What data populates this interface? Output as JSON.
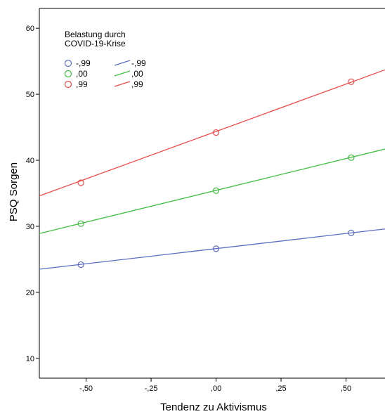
{
  "chart_data": {
    "type": "line",
    "title": "",
    "xlabel": "Tendenz zu Aktivismus",
    "ylabel": "PSQ Sorgen",
    "xlim": [
      -0.68,
      0.65
    ],
    "ylim": [
      7,
      63
    ],
    "x_ticks": [
      -0.5,
      -0.25,
      0.0,
      0.25,
      0.5
    ],
    "x_tick_labels": [
      "-,50",
      "-,25",
      ",00",
      ",25",
      ",50"
    ],
    "y_ticks": [
      10,
      20,
      30,
      40,
      50,
      60
    ],
    "y_tick_labels": [
      "10",
      "20",
      "30",
      "40",
      "50",
      "60"
    ],
    "grid": false,
    "legend": {
      "title_lines": [
        "Belastung durch",
        "COVID-19-Krise"
      ],
      "placement": "top-left",
      "marker_labels": [
        "-,99",
        ",00",
        ",99"
      ],
      "line_labels": [
        "-,99",
        ",00",
        ",99"
      ]
    },
    "series": [
      {
        "name": "-,99",
        "color": "#5b6fc2",
        "points": {
          "x": [
            -0.52,
            0.0,
            0.52
          ],
          "y": [
            24.2,
            26.6,
            29.0
          ]
        },
        "line": {
          "x": [
            -0.68,
            0.65
          ],
          "y": [
            23.5,
            29.6
          ]
        }
      },
      {
        "name": ",00",
        "color": "#3fbf3f",
        "points": {
          "x": [
            -0.52,
            0.0,
            0.52
          ],
          "y": [
            30.4,
            35.4,
            40.4
          ]
        },
        "line": {
          "x": [
            -0.68,
            0.65
          ],
          "y": [
            28.9,
            41.7
          ]
        }
      },
      {
        "name": ",99",
        "color": "#f04b4b",
        "points": {
          "x": [
            -0.52,
            0.0,
            0.52
          ],
          "y": [
            36.6,
            44.2,
            51.9
          ]
        },
        "line": {
          "x": [
            -0.68,
            0.65
          ],
          "y": [
            34.6,
            53.7
          ]
        }
      }
    ]
  }
}
